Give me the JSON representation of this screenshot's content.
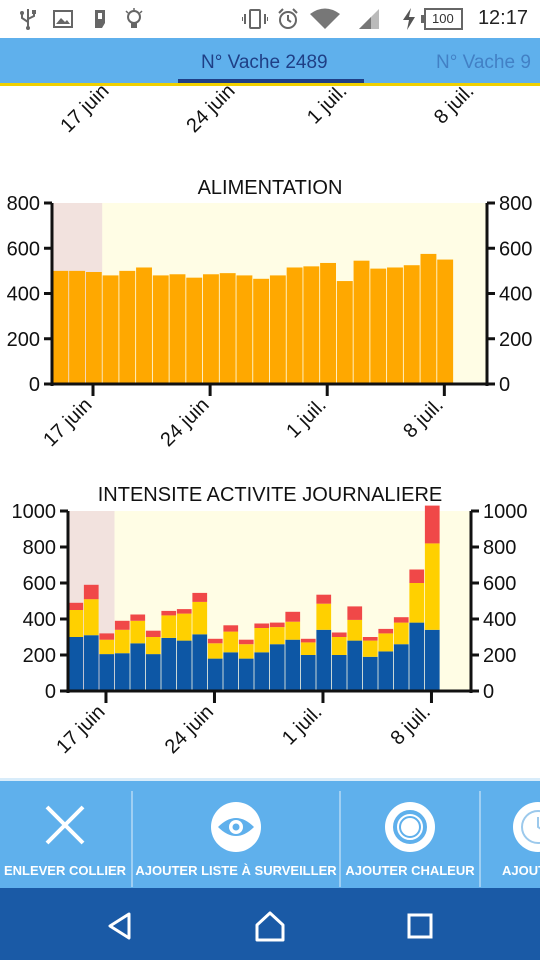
{
  "status_bar": {
    "time": "12:17",
    "battery": "100",
    "icons": [
      "usb-icon",
      "image-icon",
      "sim-icon",
      "bulb-icon",
      "vibrate-icon",
      "alarm-icon",
      "wifi-icon",
      "signal-icon",
      "charging-icon",
      "battery-icon"
    ]
  },
  "tabs": [
    {
      "label": "N° Vache 2489",
      "active": true
    },
    {
      "label": "N° Vache 9",
      "active": false
    }
  ],
  "top_axis": {
    "ticks": [
      "17 juin",
      "24 juin",
      "1 juil.",
      "8 juil."
    ]
  },
  "charts": {
    "alimentation": {
      "title": "ALIMENTATION",
      "yticks": [
        "0",
        "200",
        "400",
        "600",
        "800"
      ]
    },
    "activite": {
      "title": "INTENSITE ACTIVITE JOURNALIERE",
      "yticks": [
        "0",
        "200",
        "400",
        "600",
        "800",
        "1000"
      ]
    }
  },
  "chart_data": [
    {
      "type": "bar",
      "title": "ALIMENTATION",
      "x_ticks": [
        "17 juin",
        "24 juin",
        "1 juil.",
        "8 juil."
      ],
      "values": [
        500,
        500,
        495,
        480,
        500,
        515,
        480,
        485,
        470,
        485,
        490,
        480,
        465,
        480,
        515,
        520,
        535,
        455,
        545,
        510,
        515,
        525,
        575,
        550
      ],
      "ylim": [
        0,
        800
      ],
      "color": "#ffa800",
      "highlight_band_days": 3,
      "band_color": "#f2e2de",
      "background": "#fffde5"
    },
    {
      "type": "bar",
      "title": "INTENSITE ACTIVITE JOURNALIERE",
      "x_ticks": [
        "17 juin",
        "24 juin",
        "1 juil.",
        "8 juil."
      ],
      "ylim": [
        0,
        1000
      ],
      "stacked": true,
      "series": [
        {
          "color": "#0d57a5",
          "values": [
            300,
            310,
            205,
            210,
            265,
            205,
            295,
            280,
            315,
            180,
            215,
            180,
            215,
            260,
            285,
            200,
            340,
            200,
            280,
            190,
            220,
            260,
            380,
            340
          ]
        },
        {
          "color": "#ffd000",
          "values": [
            150,
            200,
            80,
            130,
            125,
            95,
            125,
            150,
            180,
            85,
            115,
            80,
            135,
            95,
            100,
            70,
            145,
            100,
            115,
            90,
            100,
            120,
            220,
            480
          ]
        },
        {
          "color": "#f04848",
          "values": [
            40,
            80,
            35,
            50,
            35,
            35,
            25,
            25,
            50,
            25,
            35,
            25,
            25,
            25,
            55,
            20,
            50,
            25,
            75,
            20,
            25,
            30,
            75,
            210
          ]
        }
      ],
      "highlight_band_days": 3,
      "band_color": "#f2e2de",
      "background": "#fffde5"
    }
  ],
  "actions": [
    {
      "label": "ENLEVER COLLIER",
      "icon": "close-icon"
    },
    {
      "label": "AJOUTER LISTE À SURVEILLER",
      "icon": "eye-icon"
    },
    {
      "label": "AJOUTER CHALEUR",
      "icon": "target-icon"
    },
    {
      "label": "AJOUT",
      "icon": "clock-icon"
    }
  ],
  "nav": {
    "buttons": [
      "back-icon",
      "home-icon",
      "recent-apps-icon"
    ]
  }
}
